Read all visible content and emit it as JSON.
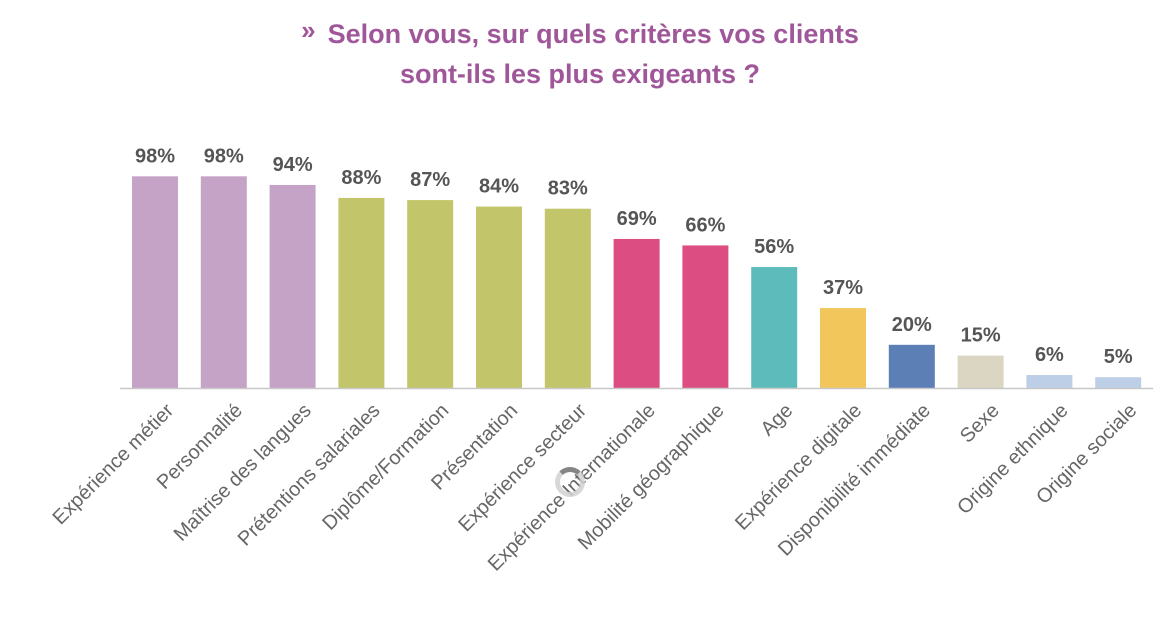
{
  "title": {
    "chevron": "»",
    "line1": "Selon vous, sur quels critères vos clients",
    "line2": "sont-ils les plus exigeants ?"
  },
  "chart_data": {
    "type": "bar",
    "title": "Selon vous, sur quels critères vos clients sont-ils les plus exigeants ?",
    "categories": [
      "Expérience métier",
      "Personnalité",
      "Maîtrise des langues",
      "Prétentions salariales",
      "Diplôme/Formation",
      "Présentation",
      "Expérience secteur",
      "Expérience Internationale",
      "Mobilité géographique",
      "Age",
      "Expérience digitale",
      "Disponibilité immédiate",
      "Sexe",
      "Origine ethnique",
      "Origine sociale"
    ],
    "values": [
      98,
      98,
      94,
      88,
      87,
      84,
      83,
      69,
      66,
      56,
      37,
      20,
      15,
      6,
      5
    ],
    "value_labels": [
      "98%",
      "98%",
      "94%",
      "88%",
      "87%",
      "84%",
      "83%",
      "69%",
      "66%",
      "56%",
      "37%",
      "20%",
      "15%",
      "6%",
      "5%"
    ],
    "colors": [
      "#c4a3c6",
      "#c4a3c6",
      "#c4a3c6",
      "#c3c56a",
      "#c3c56a",
      "#c3c56a",
      "#c3c56a",
      "#dc4d82",
      "#dc4d82",
      "#5dbcbb",
      "#f2c65a",
      "#5c7fb5",
      "#dbd6c2",
      "#bccfe6",
      "#bccfe6"
    ],
    "unit": "%",
    "ylim": [
      0,
      100
    ],
    "grid": false,
    "legend": "none",
    "xlabel": "",
    "ylabel": ""
  },
  "overlay": {
    "loading_spinner": "spinner-icon"
  }
}
